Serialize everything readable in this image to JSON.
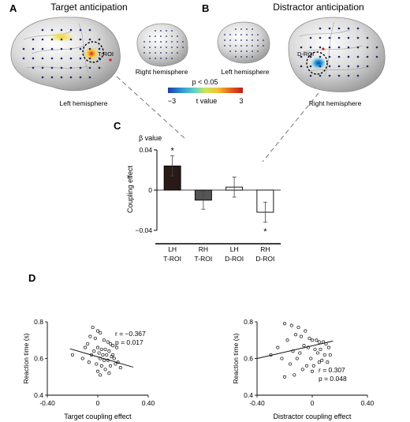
{
  "panel_a": {
    "letter": "A",
    "title": "Target anticipation",
    "roi_label": "T-ROI",
    "left_caption": "Left hemisphere",
    "inset_caption": "Right hemisphere"
  },
  "panel_b": {
    "letter": "B",
    "title": "Distractor anticipation",
    "roi_label": "D-ROI",
    "inset_caption": "Left hemisphere",
    "right_caption": "Right hemisphere"
  },
  "colorbar": {
    "threshold": "p < 0.05",
    "min_label": "−3",
    "mid_label": "t value",
    "max_label": "3",
    "colors": [
      "#1f3f9f",
      "#2a8fd6",
      "#5fd0c8",
      "#c8e65a",
      "#f6c233",
      "#e8641f",
      "#b81e1e"
    ]
  },
  "panel_c": {
    "letter": "C",
    "ylabel_top": "β value",
    "ylabel": "Coupling effect",
    "ticks": [
      "0.04",
      "0",
      "−0.04"
    ],
    "groups": [
      {
        "line1": "LH",
        "line2": "T-ROI"
      },
      {
        "line1": "RH",
        "line2": "T-ROI"
      },
      {
        "line1": "LH",
        "line2": "D-ROI"
      },
      {
        "line1": "RH",
        "line2": "D-ROI"
      }
    ],
    "star": "*"
  },
  "panel_d": {
    "letter": "D",
    "left": {
      "xlabel": "Target coupling effect",
      "ylabel": "Reaction time (s)",
      "r_text": "r = −0.367",
      "p_text": "p = 0.017",
      "xticks": [
        "-0.40",
        "0",
        "0.40"
      ],
      "yticks": [
        "0.8",
        "0.6",
        "0.4"
      ]
    },
    "right": {
      "xlabel": "Distractor coupling effect",
      "ylabel": "Reaction time (s)",
      "r_text": "r = 0.307",
      "p_text": "p = 0.048",
      "xticks": [
        "-0.40",
        "0",
        "0.40"
      ],
      "yticks": [
        "0.8",
        "0.6",
        "0.4"
      ]
    }
  },
  "chart_data": [
    {
      "type": "bar",
      "categories": [
        "LH T-ROI",
        "RH T-ROI",
        "LH D-ROI",
        "RH D-ROI"
      ],
      "values": [
        0.024,
        -0.01,
        0.003,
        -0.022
      ],
      "errors": [
        0.01,
        0.009,
        0.01,
        0.01
      ],
      "fills": [
        "#2a1a17",
        "#555555",
        "#ffffff",
        "#ffffff"
      ],
      "significant": [
        true,
        false,
        false,
        true
      ],
      "ylabel": "Coupling effect",
      "ylim": [
        -0.04,
        0.04
      ]
    },
    {
      "type": "scatter",
      "xlabel": "Target coupling effect",
      "ylabel": "Reaction time (s)",
      "xlim": [
        -0.4,
        0.4
      ],
      "ylim": [
        0.4,
        0.8
      ],
      "fit": [
        [
          -0.22,
          0.653
        ],
        [
          0.28,
          0.553
        ]
      ],
      "x": [
        -0.04,
        0.0,
        0.02,
        -0.06,
        -0.02,
        0.05,
        0.08,
        0.1,
        0.12,
        0.15,
        -0.08,
        -0.1,
        0.0,
        0.03,
        0.06,
        0.09,
        -0.03,
        0.01,
        0.04,
        0.07,
        0.11,
        0.13,
        -0.05,
        0.02,
        0.05,
        0.08,
        0.16,
        -0.01,
        0.03,
        0.1,
        -0.07,
        0.14,
        0.18,
        0.06,
        0.0,
        0.09,
        -0.12,
        0.12,
        0.02,
        -0.2
      ],
      "y": [
        0.77,
        0.75,
        0.74,
        0.72,
        0.71,
        0.7,
        0.69,
        0.68,
        0.67,
        0.66,
        0.68,
        0.66,
        0.66,
        0.65,
        0.65,
        0.64,
        0.64,
        0.63,
        0.62,
        0.62,
        0.61,
        0.6,
        0.62,
        0.6,
        0.59,
        0.59,
        0.58,
        0.57,
        0.56,
        0.56,
        0.58,
        0.57,
        0.55,
        0.54,
        0.53,
        0.52,
        0.6,
        0.62,
        0.51,
        0.62
      ]
    },
    {
      "type": "scatter",
      "xlabel": "Distractor coupling effect",
      "ylabel": "Reaction time (s)",
      "xlim": [
        -0.4,
        0.4
      ],
      "ylim": [
        0.4,
        0.8
      ],
      "fit": [
        [
          -0.4,
          0.6
        ],
        [
          0.15,
          0.695
        ]
      ],
      "x": [
        -0.2,
        -0.15,
        -0.1,
        -0.05,
        -0.12,
        -0.08,
        -0.02,
        0.0,
        0.03,
        0.05,
        0.08,
        0.1,
        -0.18,
        -0.25,
        -0.3,
        -0.06,
        -0.03,
        0.02,
        0.06,
        0.12,
        -0.14,
        -0.09,
        0.04,
        0.09,
        -0.22,
        -0.11,
        -0.01,
        0.07,
        0.13,
        -0.16,
        -0.04,
        0.01,
        0.11,
        -0.07,
        0.0,
        -0.13,
        0.05,
        -0.2
      ],
      "y": [
        0.79,
        0.78,
        0.77,
        0.75,
        0.73,
        0.72,
        0.71,
        0.7,
        0.7,
        0.69,
        0.69,
        0.68,
        0.7,
        0.66,
        0.62,
        0.67,
        0.66,
        0.65,
        0.65,
        0.66,
        0.64,
        0.63,
        0.63,
        0.62,
        0.6,
        0.6,
        0.6,
        0.59,
        0.62,
        0.57,
        0.56,
        0.56,
        0.58,
        0.54,
        0.53,
        0.51,
        0.58,
        0.5
      ]
    }
  ]
}
